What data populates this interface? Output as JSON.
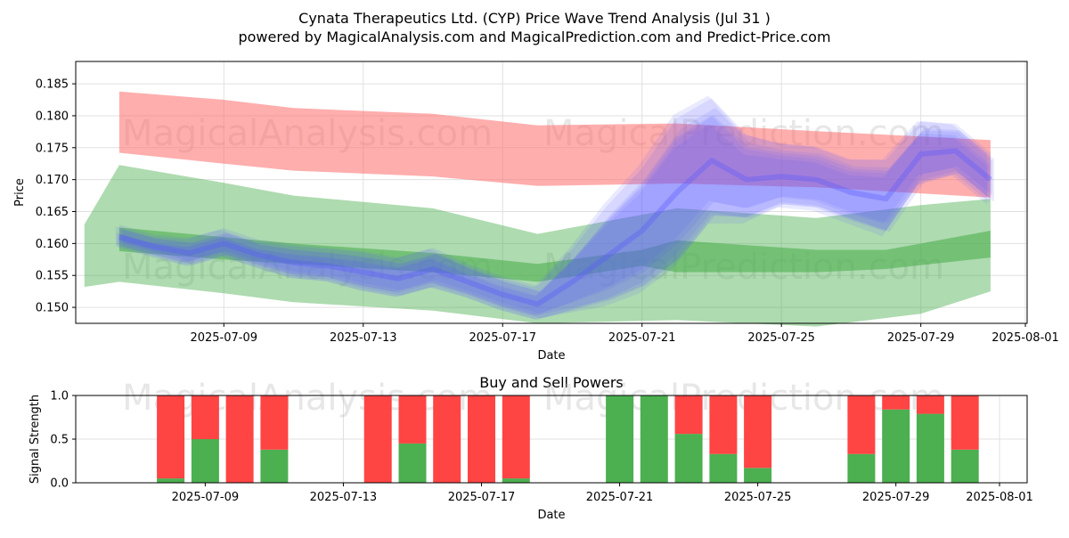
{
  "title_line1": "Cynata Therapeutics Ltd. (CYP) Price Wave Trend Analysis (Jul 31 )",
  "title_line2": "powered by MagicalAnalysis.com and MagicalPrediction.com and Predict-Price.com",
  "watermarks": [
    "MagicalAnalysis.com",
    "MagicalPrediction.com"
  ],
  "colors": {
    "upper_band": "#ff6b6b",
    "lower_band": "#4caf50",
    "wave": "#5a5aff",
    "buy": "#4caf50",
    "sell": "#ff4444"
  },
  "chart_data": [
    {
      "type": "area",
      "ylabel": "Price",
      "xlabel": "Date",
      "xlim": [
        "2025-07-05",
        "2025-08-01"
      ],
      "ylim": [
        0.1475,
        0.1885
      ],
      "x_ticks": [
        "2025-07-09",
        "2025-07-13",
        "2025-07-17",
        "2025-07-21",
        "2025-07-25",
        "2025-07-29",
        "2025-08-01"
      ],
      "y_ticks": [
        "0.150",
        "0.155",
        "0.160",
        "0.165",
        "0.170",
        "0.175",
        "0.180",
        "0.185"
      ],
      "grid": true,
      "upper_band": {
        "x": [
          "2025-07-06",
          "2025-07-09",
          "2025-07-11",
          "2025-07-15",
          "2025-07-18",
          "2025-07-22",
          "2025-07-26",
          "2025-07-31"
        ],
        "high": [
          0.1838,
          0.1825,
          0.1812,
          0.1803,
          0.1785,
          0.1788,
          0.1776,
          0.1762
        ],
        "low": [
          0.1742,
          0.1725,
          0.1714,
          0.1705,
          0.169,
          0.1694,
          0.1688,
          0.1672
        ]
      },
      "lower_band_wide": {
        "x": [
          "2025-07-05",
          "2025-07-06",
          "2025-07-09",
          "2025-07-11",
          "2025-07-15",
          "2025-07-18",
          "2025-07-22",
          "2025-07-26",
          "2025-07-29",
          "2025-07-31"
        ],
        "high": [
          0.163,
          0.1723,
          0.1695,
          0.1675,
          0.1655,
          0.1615,
          0.1655,
          0.164,
          0.166,
          0.167
        ],
        "low": [
          0.1532,
          0.154,
          0.1522,
          0.1508,
          0.1495,
          0.1475,
          0.148,
          0.147,
          0.149,
          0.1525
        ]
      },
      "lower_band_core": {
        "x": [
          "2025-07-06",
          "2025-07-09",
          "2025-07-11",
          "2025-07-15",
          "2025-07-18",
          "2025-07-21",
          "2025-07-22",
          "2025-07-26",
          "2025-07-28",
          "2025-07-31"
        ],
        "high": [
          0.1625,
          0.161,
          0.16,
          0.1585,
          0.1568,
          0.159,
          0.1605,
          0.159,
          0.159,
          0.162
        ],
        "low": [
          0.1588,
          0.1575,
          0.1568,
          0.1555,
          0.154,
          0.1565,
          0.1555,
          0.1555,
          0.156,
          0.1578
        ]
      },
      "wave": {
        "x": [
          "2025-07-06",
          "2025-07-07",
          "2025-07-08",
          "2025-07-09",
          "2025-07-10",
          "2025-07-11",
          "2025-07-12",
          "2025-07-13",
          "2025-07-14",
          "2025-07-15",
          "2025-07-16",
          "2025-07-17",
          "2025-07-18",
          "2025-07-19",
          "2025-07-20",
          "2025-07-21",
          "2025-07-22",
          "2025-07-23",
          "2025-07-24",
          "2025-07-25",
          "2025-07-26",
          "2025-07-27",
          "2025-07-28",
          "2025-07-29",
          "2025-07-30",
          "2025-07-31"
        ],
        "mid": [
          0.161,
          0.1595,
          0.1585,
          0.16,
          0.1582,
          0.157,
          0.1565,
          0.1555,
          0.1545,
          0.156,
          0.154,
          0.152,
          0.1505,
          0.154,
          0.158,
          0.162,
          0.168,
          0.173,
          0.17,
          0.1705,
          0.17,
          0.168,
          0.167,
          0.174,
          0.1745,
          0.17
        ],
        "spread": [
          0.0015,
          0.0015,
          0.002,
          0.002,
          0.002,
          0.0025,
          0.0025,
          0.003,
          0.003,
          0.003,
          0.0025,
          0.0025,
          0.0025,
          0.005,
          0.008,
          0.01,
          0.012,
          0.01,
          0.007,
          0.005,
          0.005,
          0.005,
          0.006,
          0.005,
          0.004,
          0.004
        ]
      }
    },
    {
      "type": "bar",
      "title": "Buy and Sell Powers",
      "ylabel": "Signal Strength",
      "xlabel": "Date",
      "ylim": [
        0,
        1
      ],
      "y_ticks": [
        "0.0",
        "0.5",
        "1.0"
      ],
      "x_ticks": [
        "2025-07-09",
        "2025-07-13",
        "2025-07-17",
        "2025-07-21",
        "2025-07-25",
        "2025-07-29",
        "2025-08-01"
      ],
      "grid": true,
      "categories": [
        "2025-07-08",
        "2025-07-09",
        "2025-07-10",
        "2025-07-11",
        "2025-07-14",
        "2025-07-15",
        "2025-07-16",
        "2025-07-17",
        "2025-07-18",
        "2025-07-21",
        "2025-07-22",
        "2025-07-23",
        "2025-07-24",
        "2025-07-25",
        "2025-07-28",
        "2025-07-29",
        "2025-07-30",
        "2025-07-31"
      ],
      "series": [
        {
          "name": "Buy",
          "values": [
            0.05,
            0.5,
            0.0,
            0.38,
            0.0,
            0.45,
            0.0,
            0.0,
            0.05,
            1.0,
            1.0,
            0.56,
            0.33,
            0.17,
            0.33,
            0.84,
            0.79,
            0.38
          ]
        },
        {
          "name": "Sell",
          "values": [
            0.95,
            0.5,
            1.0,
            0.62,
            1.0,
            0.55,
            1.0,
            1.0,
            0.95,
            0.0,
            0.0,
            0.44,
            0.67,
            0.83,
            0.67,
            0.16,
            0.21,
            0.62
          ]
        }
      ]
    }
  ]
}
